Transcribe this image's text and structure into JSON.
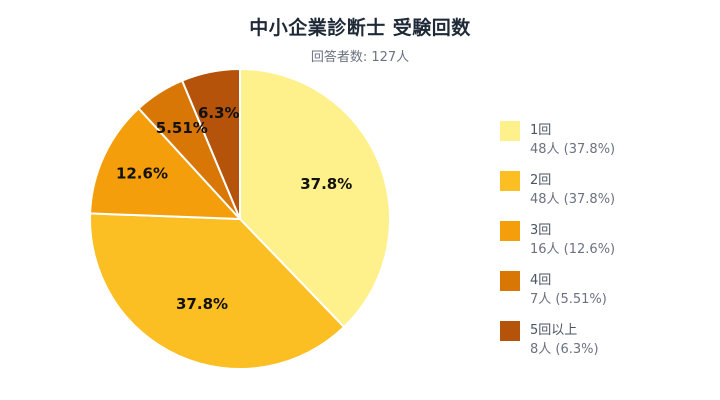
{
  "header": {
    "title": "中小企業診断士 受験回数",
    "subtitle": "回答者数: 127人"
  },
  "legend": [
    {
      "name": "1回",
      "value": "48人 (37.8%)",
      "color": "#FEF08A"
    },
    {
      "name": "2回",
      "value": "48人 (37.8%)",
      "color": "#FBBF24"
    },
    {
      "name": "3回",
      "value": "16人 (12.6%)",
      "color": "#F59E0B"
    },
    {
      "name": "4回",
      "value": "7人 (5.51%)",
      "color": "#D97706"
    },
    {
      "name": "5回以上",
      "value": "8人 (6.3%)",
      "color": "#B45309"
    }
  ],
  "slice_labels": [
    "37.8%",
    "37.8%",
    "12.6%",
    "5.51%",
    "6.3%"
  ],
  "chart_data": {
    "type": "pie",
    "title": "中小企業診断士 受験回数",
    "subtitle": "回答者数: 127人",
    "categories": [
      "1回",
      "2回",
      "3回",
      "4回",
      "5回以上"
    ],
    "values": [
      48,
      48,
      16,
      7,
      8
    ],
    "percentages": [
      37.8,
      37.8,
      12.6,
      5.51,
      6.3
    ],
    "colors": [
      "#FEF08A",
      "#FBBF24",
      "#F59E0B",
      "#D97706",
      "#B45309"
    ],
    "total": 127,
    "legend_position": "right",
    "start_angle": "12 o'clock, clockwise"
  }
}
